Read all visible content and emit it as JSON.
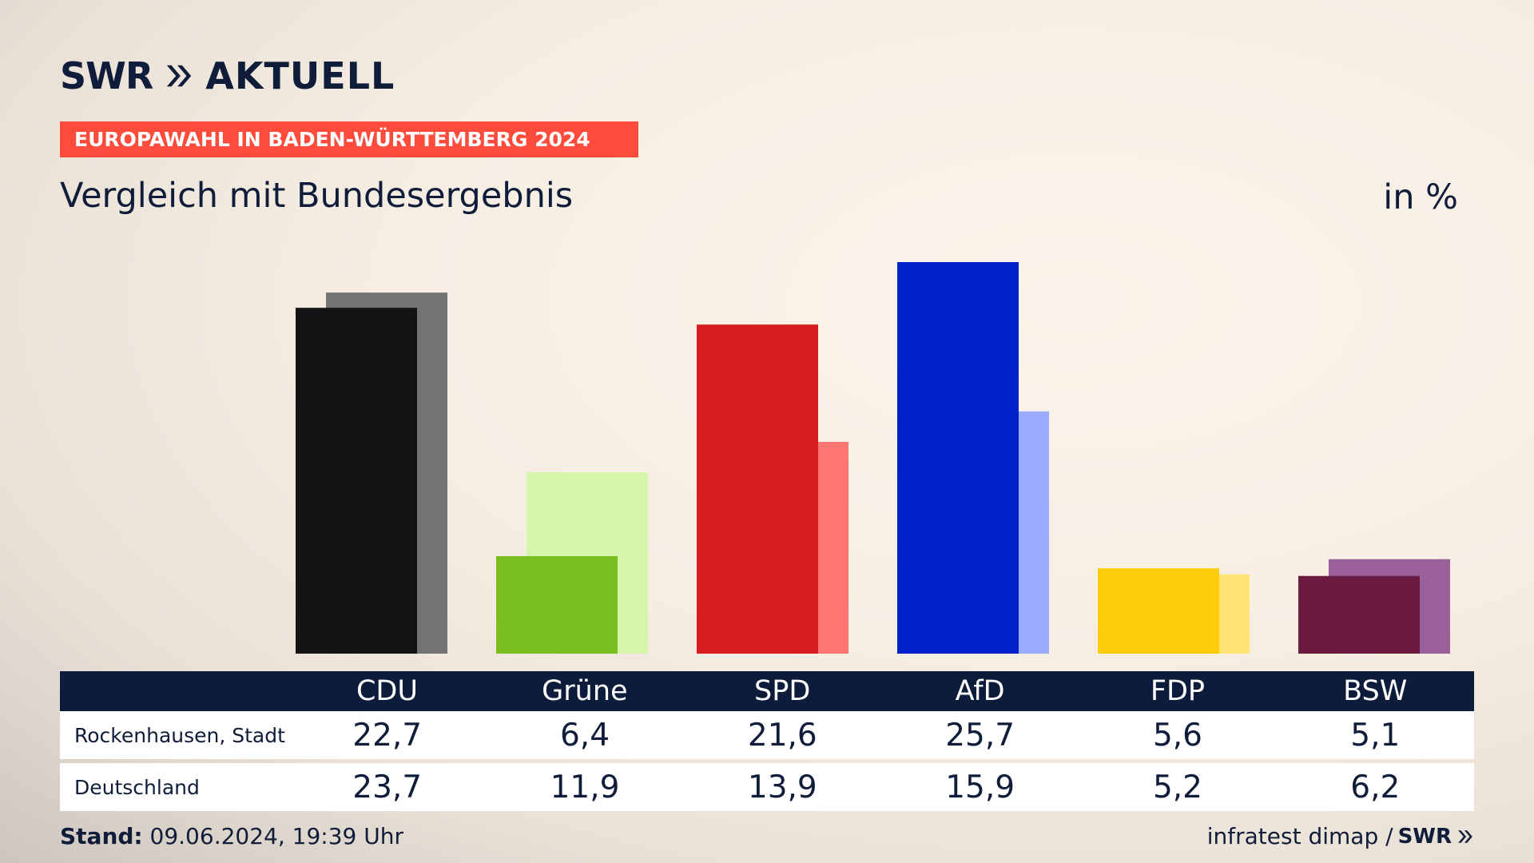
{
  "brand": {
    "swr": "SWR",
    "aktuell": "AKTUELL"
  },
  "banner": "EUROPAWAHL IN BADEN-WÜRTTEMBERG 2024",
  "subtitle": "Vergleich mit Bundesergebnis",
  "unit": "in %",
  "table": {
    "rows": [
      {
        "label": "Rockenhausen, Stadt",
        "values": [
          "22,7",
          "6,4",
          "21,6",
          "25,7",
          "5,6",
          "5,1"
        ]
      },
      {
        "label": "Deutschland",
        "values": [
          "23,7",
          "11,9",
          "13,9",
          "15,9",
          "5,2",
          "6,2"
        ]
      }
    ]
  },
  "footer": {
    "stand_label": "Stand:",
    "stand_value": "09.06.2024, 19:39 Uhr",
    "source": "infratest dimap /",
    "source_brand": "SWR"
  },
  "chart_data": {
    "type": "bar",
    "categories": [
      "CDU",
      "Grüne",
      "SPD",
      "AfD",
      "FDP",
      "BSW"
    ],
    "series": [
      {
        "name": "Rockenhausen, Stadt",
        "values": [
          22.7,
          6.4,
          21.6,
          25.7,
          5.6,
          5.1
        ],
        "colors": [
          "#141414",
          "#78be1e",
          "#d71f20",
          "#0020c8",
          "#ffcc0a",
          "#6b1a40"
        ]
      },
      {
        "name": "Deutschland",
        "values": [
          23.7,
          11.9,
          13.9,
          15.9,
          5.2,
          6.2
        ],
        "colors": [
          "#737373",
          "#d5f6a8",
          "#ff7670",
          "#9aacff",
          "#ffe473",
          "#9a609a"
        ]
      }
    ],
    "ylim": [
      0,
      25.7
    ],
    "grid": false,
    "legend": "table-below"
  }
}
